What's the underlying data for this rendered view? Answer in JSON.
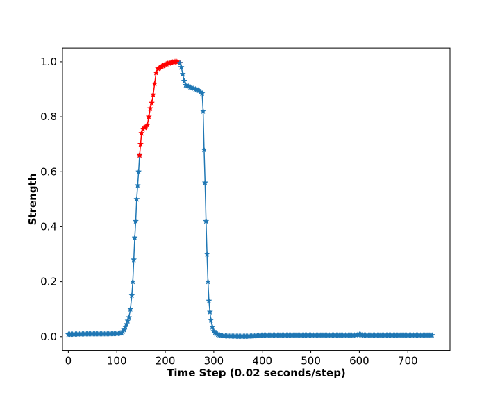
{
  "chart_data": {
    "type": "line",
    "title": "",
    "xlabel": "Time Step (0.02 seconds/step)",
    "ylabel": "Strength",
    "xlim": [
      -12,
      787
    ],
    "ylim": [
      -0.05,
      1.05
    ],
    "xticks": [
      0,
      100,
      200,
      300,
      400,
      500,
      600,
      700
    ],
    "yticks": [
      0.0,
      0.2,
      0.4,
      0.6,
      0.8,
      1.0
    ],
    "ytick_labels": [
      "0.0",
      "0.2",
      "0.4",
      "0.6",
      "0.8",
      "1.0"
    ],
    "grid": false,
    "legend": "none",
    "marker": "star",
    "line_color": "#1f77b4",
    "highlight_color": "#ff0000",
    "series": [
      {
        "values": [
          {
            "x": 0,
            "y": 0.008
          },
          {
            "x": 20,
            "y": 0.009
          },
          {
            "x": 40,
            "y": 0.01
          },
          {
            "x": 60,
            "y": 0.01
          },
          {
            "x": 80,
            "y": 0.01
          },
          {
            "x": 100,
            "y": 0.011
          },
          {
            "x": 110,
            "y": 0.013
          },
          {
            "x": 115,
            "y": 0.025
          },
          {
            "x": 120,
            "y": 0.045
          },
          {
            "x": 125,
            "y": 0.07
          },
          {
            "x": 128,
            "y": 0.1
          },
          {
            "x": 131,
            "y": 0.15
          },
          {
            "x": 133,
            "y": 0.2
          },
          {
            "x": 135,
            "y": 0.28
          },
          {
            "x": 137,
            "y": 0.36
          },
          {
            "x": 139,
            "y": 0.42
          },
          {
            "x": 141,
            "y": 0.5
          },
          {
            "x": 143,
            "y": 0.55
          },
          {
            "x": 145,
            "y": 0.6
          },
          {
            "x": 147,
            "y": 0.66
          }
        ]
      },
      {
        "values": [
          {
            "x": 147,
            "y": 0.66
          },
          {
            "x": 149,
            "y": 0.7
          },
          {
            "x": 151,
            "y": 0.74
          },
          {
            "x": 154,
            "y": 0.755
          },
          {
            "x": 158,
            "y": 0.76
          },
          {
            "x": 163,
            "y": 0.77
          },
          {
            "x": 166,
            "y": 0.8
          },
          {
            "x": 169,
            "y": 0.83
          },
          {
            "x": 172,
            "y": 0.85
          },
          {
            "x": 175,
            "y": 0.88
          },
          {
            "x": 178,
            "y": 0.92
          },
          {
            "x": 181,
            "y": 0.96
          },
          {
            "x": 185,
            "y": 0.975
          },
          {
            "x": 190,
            "y": 0.98
          },
          {
            "x": 195,
            "y": 0.985
          },
          {
            "x": 200,
            "y": 0.99
          },
          {
            "x": 205,
            "y": 0.993
          },
          {
            "x": 210,
            "y": 0.996
          },
          {
            "x": 215,
            "y": 0.998
          },
          {
            "x": 220,
            "y": 1.0
          },
          {
            "x": 226,
            "y": 1.0
          },
          {
            "x": 230,
            "y": 0.995
          }
        ]
      },
      {
        "values": [
          {
            "x": 230,
            "y": 0.995
          },
          {
            "x": 233,
            "y": 0.98
          },
          {
            "x": 236,
            "y": 0.955
          },
          {
            "x": 239,
            "y": 0.93
          },
          {
            "x": 242,
            "y": 0.915
          },
          {
            "x": 248,
            "y": 0.91
          },
          {
            "x": 255,
            "y": 0.905
          },
          {
            "x": 262,
            "y": 0.9
          },
          {
            "x": 270,
            "y": 0.895
          },
          {
            "x": 276,
            "y": 0.885
          },
          {
            "x": 278,
            "y": 0.82
          },
          {
            "x": 280,
            "y": 0.68
          },
          {
            "x": 282,
            "y": 0.56
          },
          {
            "x": 284,
            "y": 0.42
          },
          {
            "x": 286,
            "y": 0.3
          },
          {
            "x": 288,
            "y": 0.2
          },
          {
            "x": 290,
            "y": 0.13
          },
          {
            "x": 292,
            "y": 0.09
          },
          {
            "x": 294,
            "y": 0.06
          },
          {
            "x": 297,
            "y": 0.035
          },
          {
            "x": 300,
            "y": 0.02
          },
          {
            "x": 305,
            "y": 0.01
          },
          {
            "x": 315,
            "y": 0.004
          },
          {
            "x": 330,
            "y": 0.002
          },
          {
            "x": 350,
            "y": 0.001
          },
          {
            "x": 370,
            "y": 0.001
          },
          {
            "x": 390,
            "y": 0.004
          },
          {
            "x": 410,
            "y": 0.005
          },
          {
            "x": 450,
            "y": 0.005
          },
          {
            "x": 500,
            "y": 0.005
          },
          {
            "x": 550,
            "y": 0.005
          },
          {
            "x": 590,
            "y": 0.005
          },
          {
            "x": 600,
            "y": 0.008
          },
          {
            "x": 610,
            "y": 0.005
          },
          {
            "x": 650,
            "y": 0.005
          },
          {
            "x": 700,
            "y": 0.005
          },
          {
            "x": 750,
            "y": 0.005
          }
        ]
      }
    ]
  }
}
